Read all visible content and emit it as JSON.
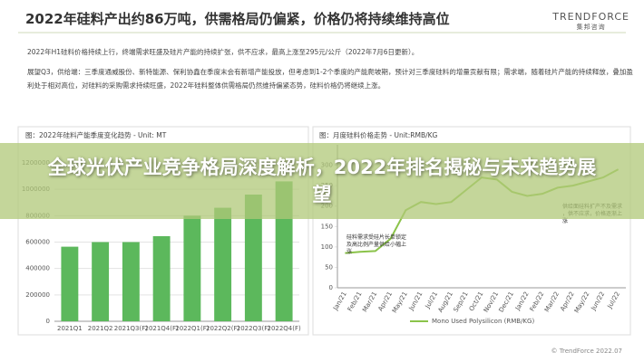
{
  "header": {
    "title": "2022年硅料产出约86万吨，供需格局仍偏紧，价格仍将持续维持高位",
    "logo": "TRENDFORCE",
    "logo_sub": "集邦咨询"
  },
  "bullets": [
    "2022年H1硅料价格持续上行，终端需求旺盛及硅片产能的持续扩张，供不应求，最高上涨至295元/公斤（2022年7月6日更新）。",
    "展望Q3，供给端：三季度通威股份、新特能源、保利协鑫在季度末会有新增产能投放，但考虑到1-2个季度的产能爬坡期，预计对三季度硅料的增量贡献有限；需求端，随着硅片产能的持续释放，叠加盈利处于相对高位，对硅料的采购需求持续旺盛，2022年硅料整体供需格局仍然维持偏紧态势，硅料价格仍将继续上涨。"
  ],
  "banner": "全球光伏产业竞争格局深度解析，2022年排名揭秘与未来趋势展望",
  "source": "© TrendForce 2022.07",
  "chart_data": [
    {
      "type": "bar",
      "title": "图：2022年硅料产能季度变化趋势 - Unit: MT",
      "categories": [
        "2021Q1",
        "2021Q2",
        "2021Q3(F)",
        "2021Q4(F)",
        "2022Q1(F)",
        "2022Q2(F)",
        "2022Q3(F)",
        "2022Q4(F)"
      ],
      "values": [
        565000,
        600000,
        600000,
        645000,
        800000,
        860000,
        960000,
        1060000
      ],
      "color": "#5cb85c",
      "ylim": [
        0,
        1200000
      ],
      "yticks": [
        0,
        200000,
        400000,
        600000,
        800000,
        1000000,
        1200000
      ],
      "grid": true
    },
    {
      "type": "line",
      "title": "图：月度硅料价格走势 - Unit:RMB/KG",
      "categories": [
        "Jan/21",
        "Feb/21",
        "Mar/21",
        "Apr/21",
        "May/21",
        "Jun/21",
        "Jul/21",
        "Aug/21",
        "Sep/21",
        "Oct/21",
        "Nov/21",
        "Dec/21",
        "Jan/22",
        "Feb/22",
        "Mar/22",
        "Apr/22",
        "May/22",
        "Jun/22",
        "Jul/22"
      ],
      "series": [
        {
          "name": "Mono Used Polysilicon (RMB/KG)",
          "color": "#8bc34a",
          "values": [
            85,
            88,
            90,
            120,
            190,
            210,
            205,
            210,
            240,
            270,
            265,
            235,
            225,
            230,
            245,
            250,
            260,
            270,
            290
          ]
        }
      ],
      "annotations": [
        "硅料需求受硅片长单锁定及高比例产量供给小幅上涨",
        "供给面硅料扩产不及需求，供不应求，价格逐渐上涨"
      ],
      "ylim": [
        0,
        350
      ],
      "yticks": [
        0,
        50,
        100,
        150,
        200,
        250,
        300
      ],
      "grid": false
    }
  ]
}
